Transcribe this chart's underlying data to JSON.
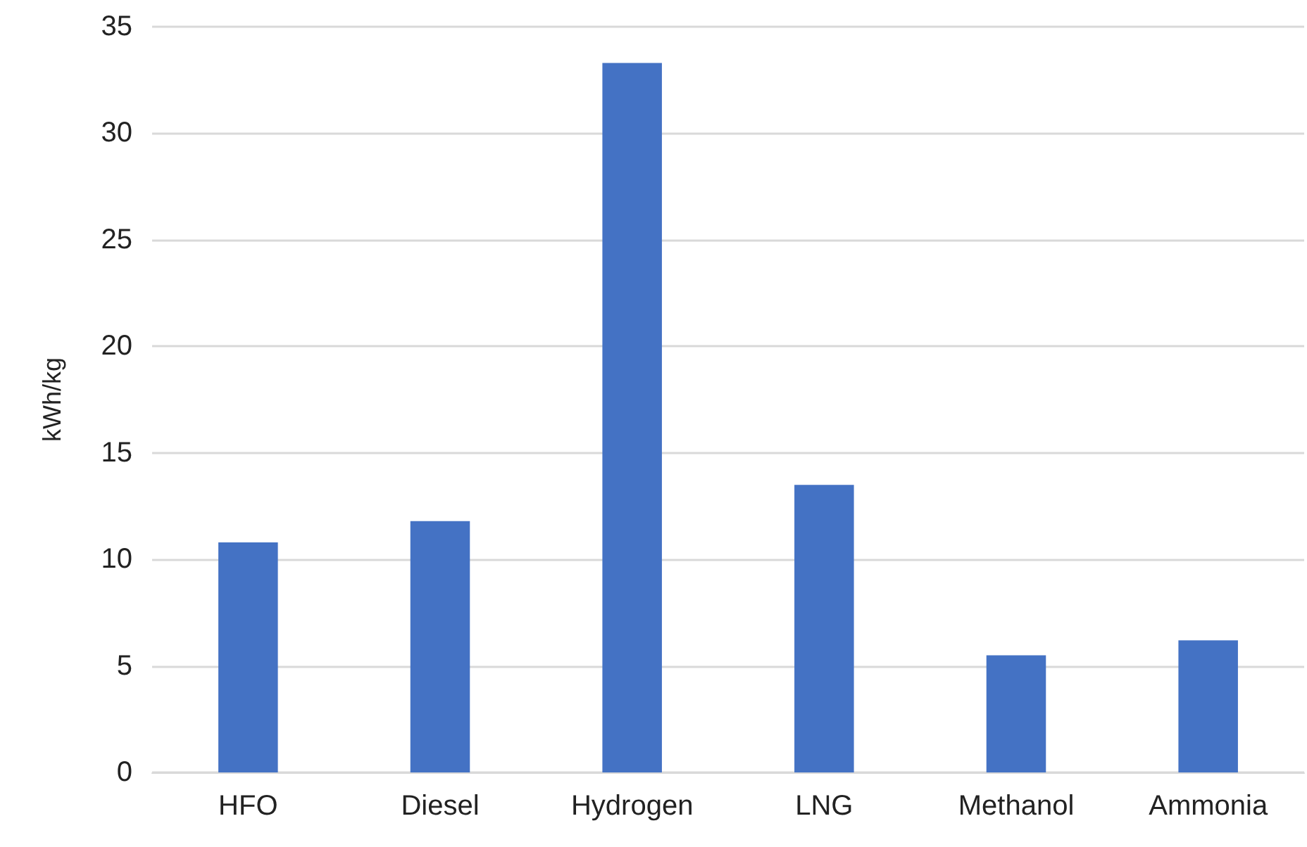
{
  "chart_data": {
    "type": "bar",
    "ylabel": "kWh/kg",
    "categories": [
      "HFO",
      "Diesel",
      "Hydrogen",
      "LNG",
      "Methanol",
      "Ammonia"
    ],
    "values": [
      10.8,
      11.8,
      33.3,
      13.5,
      5.5,
      6.2
    ],
    "color": "#4472c4",
    "ylim": [
      0,
      35
    ],
    "yticks": [
      0,
      5,
      10,
      15,
      20,
      25,
      30,
      35
    ],
    "grid": "y"
  }
}
